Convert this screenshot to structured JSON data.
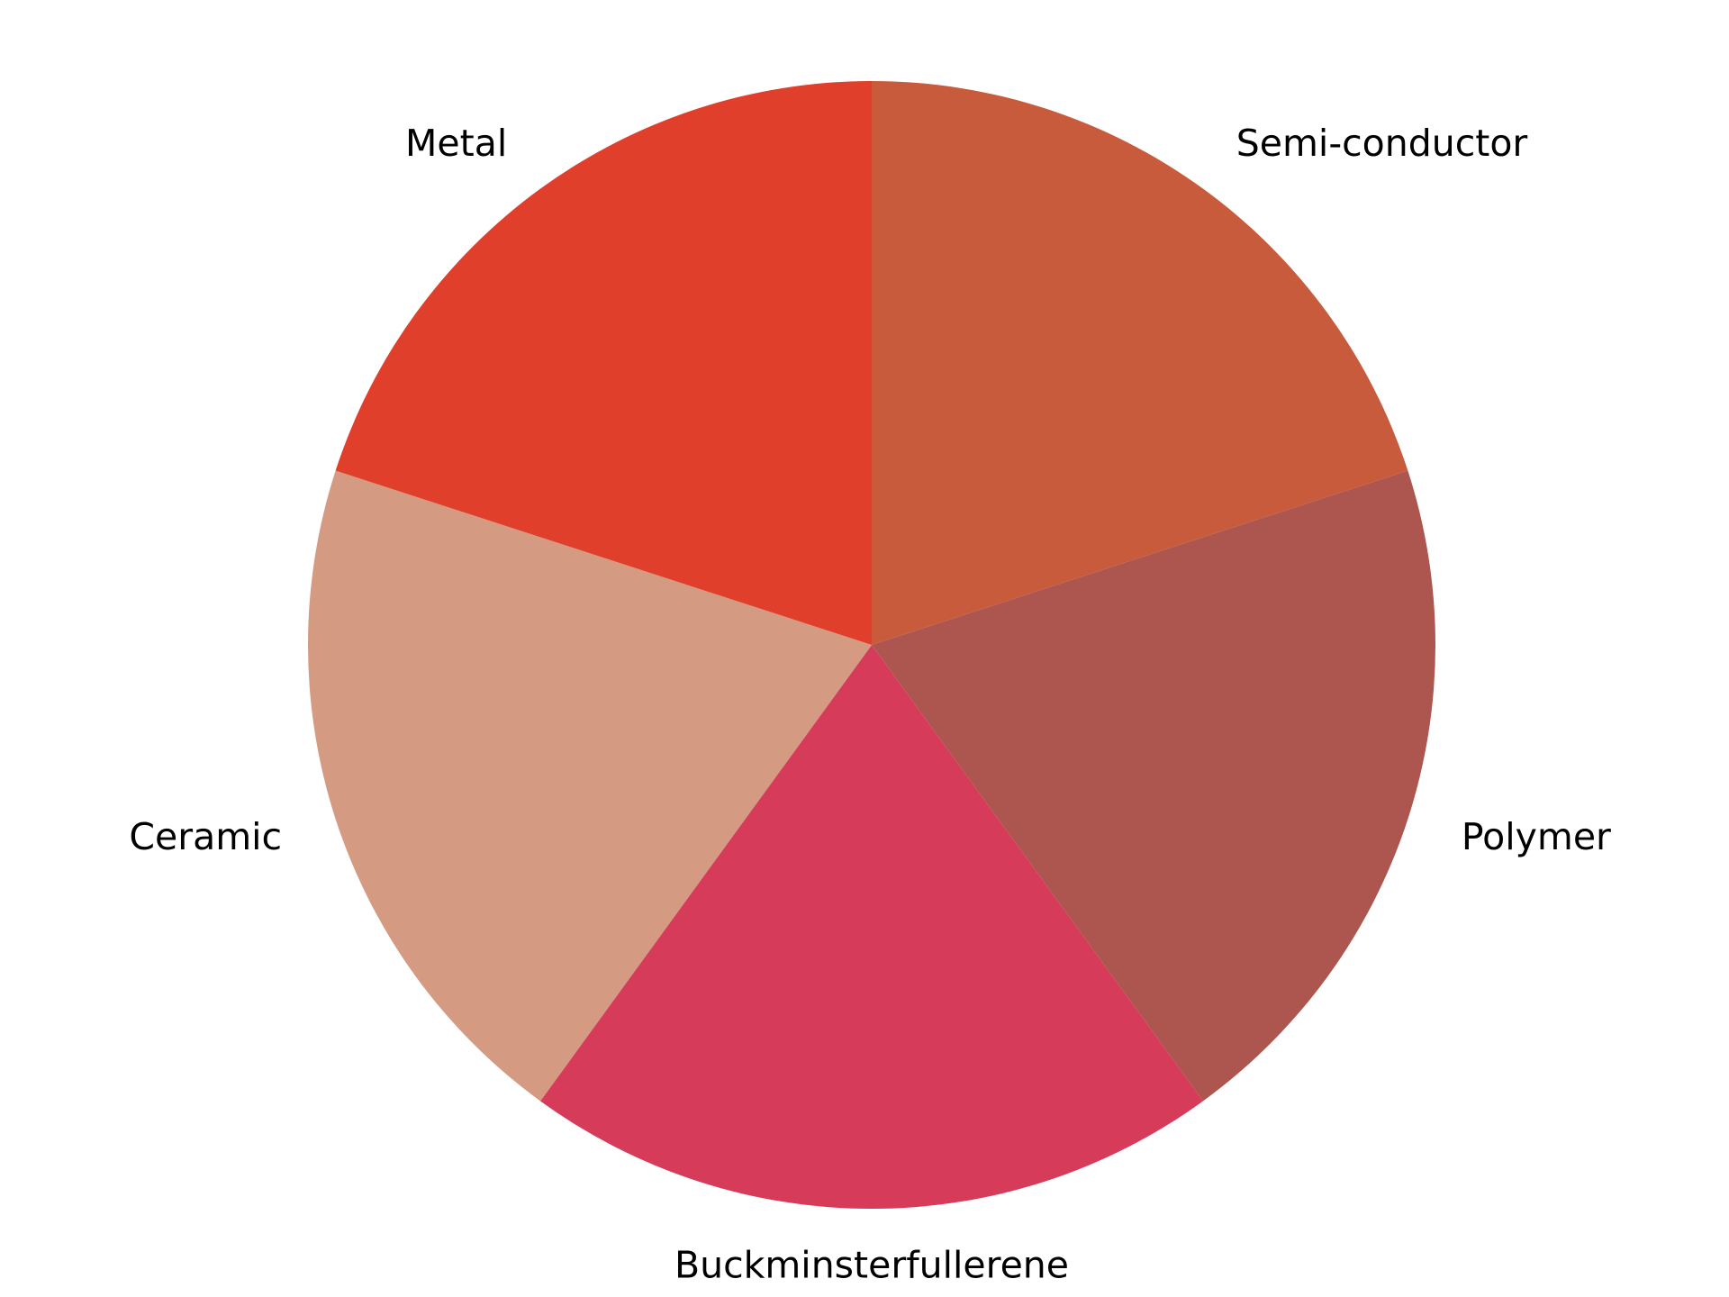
{
  "chart_data": {
    "type": "pie",
    "start_angle_deg": 90,
    "direction": "clockwise",
    "legend": "none",
    "slices": [
      {
        "label": "Semi-conductor",
        "value": 20,
        "color": "#c95b3d"
      },
      {
        "label": "Polymer",
        "value": 20,
        "color": "#ad5650"
      },
      {
        "label": "Buckminsterfullerene",
        "value": 20,
        "color": "#d63b5a"
      },
      {
        "label": "Ceramic",
        "value": 20,
        "color": "#d49a82"
      },
      {
        "label": "Metal",
        "value": 20,
        "color": "#df3f2b"
      }
    ]
  }
}
